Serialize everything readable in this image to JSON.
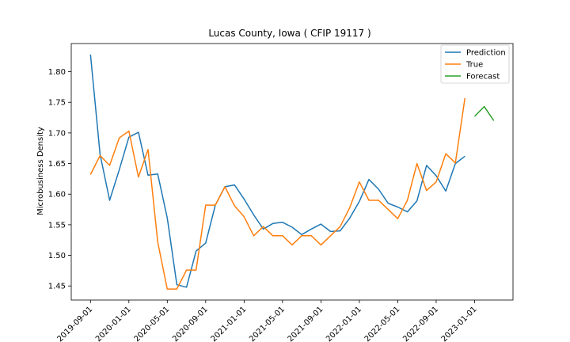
{
  "chart_data": {
    "type": "line",
    "title": "Lucas County, Iowa ( CFIP 19117 )",
    "xlabel": "",
    "ylabel": "Microbusiness Density",
    "ylim": [
      1.427,
      1.846
    ],
    "y_ticks": [
      1.45,
      1.5,
      1.55,
      1.6,
      1.65,
      1.7,
      1.75,
      1.8
    ],
    "y_tick_labels": [
      "1.45",
      "1.50",
      "1.55",
      "1.60",
      "1.65",
      "1.70",
      "1.75",
      "1.80"
    ],
    "x_tick_labels": [
      "2019-09-01",
      "2020-01-01",
      "2020-05-01",
      "2020-09-01",
      "2021-01-01",
      "2021-05-01",
      "2021-09-01",
      "2022-01-01",
      "2022-05-01",
      "2022-09-01",
      "2023-01-01"
    ],
    "grid": false,
    "legend_position": "top-right",
    "series": [
      {
        "name": "Prediction",
        "color": "#1f77b4",
        "x": [
          "2019-09-01",
          "2019-10-01",
          "2019-11-01",
          "2019-12-01",
          "2020-01-01",
          "2020-02-01",
          "2020-03-01",
          "2020-04-01",
          "2020-05-01",
          "2020-06-01",
          "2020-07-01",
          "2020-08-01",
          "2020-09-01",
          "2020-10-01",
          "2020-11-01",
          "2020-12-01",
          "2021-01-01",
          "2021-02-01",
          "2021-03-01",
          "2021-04-01",
          "2021-05-01",
          "2021-06-01",
          "2021-07-01",
          "2021-08-01",
          "2021-09-01",
          "2021-10-01",
          "2021-11-01",
          "2021-12-01",
          "2022-01-01",
          "2022-02-01",
          "2022-03-01",
          "2022-04-01",
          "2022-05-01",
          "2022-06-01",
          "2022-07-01",
          "2022-08-01",
          "2022-09-01",
          "2022-10-01",
          "2022-11-01",
          "2022-12-01"
        ],
        "values": [
          1.828,
          1.665,
          1.59,
          1.64,
          1.693,
          1.701,
          1.631,
          1.633,
          1.561,
          1.452,
          1.448,
          1.507,
          1.52,
          1.582,
          1.612,
          1.615,
          1.592,
          1.566,
          1.543,
          1.552,
          1.554,
          1.546,
          1.534,
          1.543,
          1.551,
          1.539,
          1.54,
          1.561,
          1.588,
          1.624,
          1.608,
          1.585,
          1.579,
          1.571,
          1.589,
          1.647,
          1.63,
          1.605,
          1.65,
          1.662
        ]
      },
      {
        "name": "True",
        "color": "#ff7f0e",
        "x": [
          "2019-09-01",
          "2019-10-01",
          "2019-11-01",
          "2019-12-01",
          "2020-01-01",
          "2020-02-01",
          "2020-03-01",
          "2020-04-01",
          "2020-05-01",
          "2020-06-01",
          "2020-07-01",
          "2020-08-01",
          "2020-09-01",
          "2020-10-01",
          "2020-11-01",
          "2020-12-01",
          "2021-01-01",
          "2021-02-01",
          "2021-03-01",
          "2021-04-01",
          "2021-05-01",
          "2021-06-01",
          "2021-07-01",
          "2021-08-01",
          "2021-09-01",
          "2021-10-01",
          "2021-11-01",
          "2021-12-01",
          "2022-01-01",
          "2022-02-01",
          "2022-03-01",
          "2022-04-01",
          "2022-05-01",
          "2022-06-01",
          "2022-07-01",
          "2022-08-01",
          "2022-09-01",
          "2022-10-01",
          "2022-11-01",
          "2022-12-01"
        ],
        "values": [
          1.632,
          1.663,
          1.647,
          1.692,
          1.703,
          1.628,
          1.673,
          1.522,
          1.445,
          1.445,
          1.476,
          1.476,
          1.582,
          1.582,
          1.612,
          1.581,
          1.563,
          1.532,
          1.547,
          1.532,
          1.532,
          1.517,
          1.532,
          1.532,
          1.517,
          1.532,
          1.547,
          1.578,
          1.62,
          1.59,
          1.59,
          1.575,
          1.56,
          1.59,
          1.65,
          1.606,
          1.62,
          1.666,
          1.651,
          1.757
        ]
      },
      {
        "name": "Forecast",
        "color": "#2ca02c",
        "x": [
          "2023-01-01",
          "2023-02-01",
          "2023-03-01"
        ],
        "values": [
          1.727,
          1.743,
          1.72
        ]
      }
    ]
  }
}
